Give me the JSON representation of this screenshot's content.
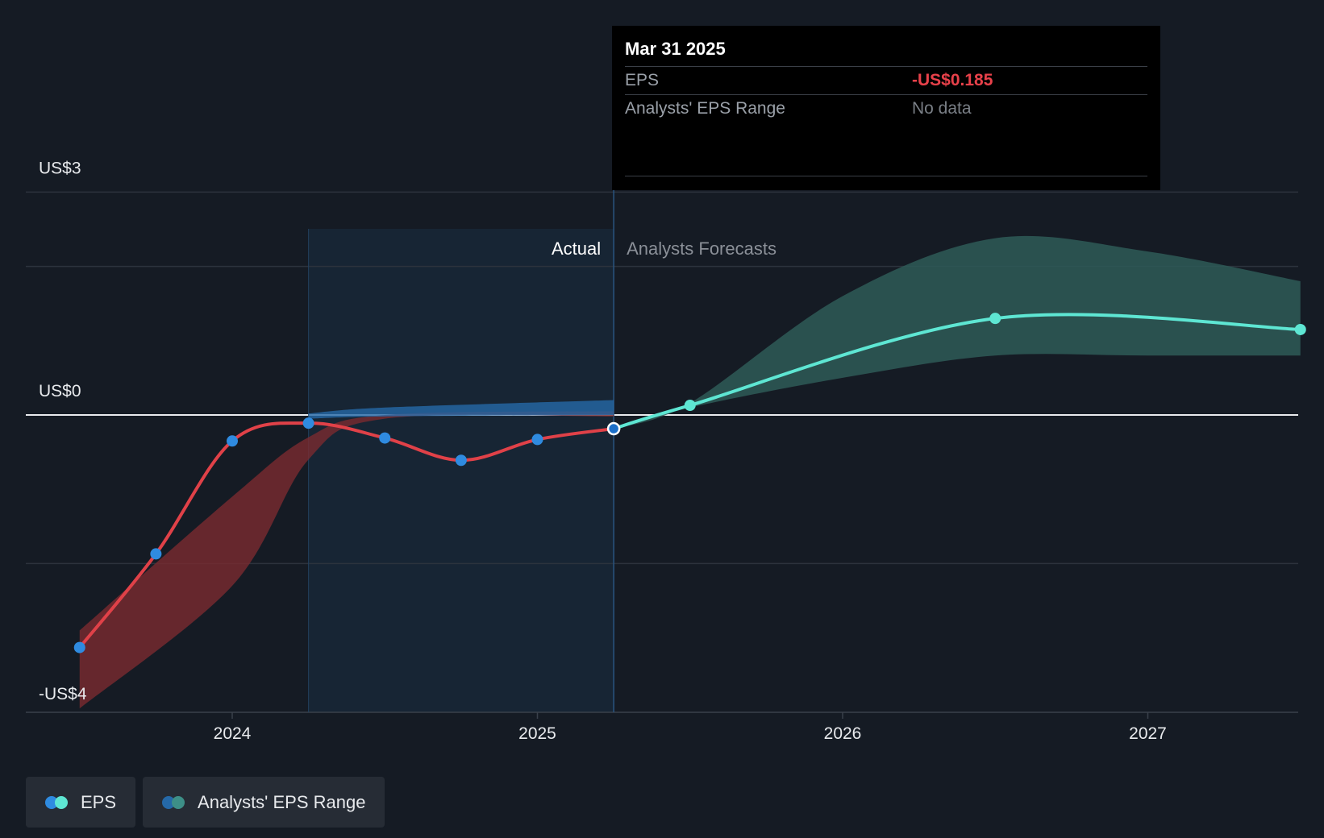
{
  "chart_data": {
    "type": "line",
    "y_axis_labels": [
      "US$3",
      "US$0",
      "-US$4"
    ],
    "ylim": [
      -4,
      3
    ],
    "x_ticks": [
      {
        "label": "2024",
        "x": 2024.0
      },
      {
        "label": "2025",
        "x": 2025.0
      },
      {
        "label": "2026",
        "x": 2026.0
      },
      {
        "label": "2027",
        "x": 2027.0
      }
    ],
    "xlim": [
      2023.33,
      2027.5
    ],
    "grid": true,
    "legend_position": "bottom-left",
    "actual_region_label": "Actual",
    "forecast_region_label": "Analysts Forecasts",
    "actual_region_start": 2024.25,
    "actual_region_end": 2025.25,
    "series": [
      {
        "name": "EPS",
        "kind": "actual",
        "color": "#e04148",
        "marker_color": "#2f8be0",
        "x": [
          2023.5,
          2023.75,
          2024.0,
          2024.25,
          2024.5,
          2024.75,
          2025.0,
          2025.25
        ],
        "y": [
          -3.13,
          -1.87,
          -0.35,
          -0.11,
          -0.31,
          -0.61,
          -0.33,
          -0.185
        ]
      },
      {
        "name": "EPS",
        "kind": "forecast",
        "color": "#5ee6d3",
        "marker_color": "#5ee6d3",
        "x": [
          2025.25,
          2025.5,
          2026.5,
          2027.5
        ],
        "y": [
          -0.185,
          0.13,
          1.3,
          1.15
        ]
      }
    ],
    "past_estimate_range": {
      "color": "#7a2b30",
      "x": [
        2023.5,
        2024.0,
        2024.25,
        2024.5,
        2025.25
      ],
      "upper": [
        -2.9,
        -1.1,
        -0.3,
        0.0,
        0.05
      ],
      "lower": [
        -3.95,
        -2.3,
        -0.6,
        -0.05,
        -0.02
      ]
    },
    "past_range_band": {
      "color": "#2569a8",
      "x": [
        2024.25,
        2024.5,
        2025.25
      ],
      "upper": [
        0.02,
        0.1,
        0.2
      ],
      "lower": [
        -0.05,
        -0.02,
        0.0
      ]
    },
    "forecast_range": {
      "color": "#2e5a57",
      "x": [
        2025.25,
        2025.5,
        2026.0,
        2026.5,
        2027.0,
        2027.5
      ],
      "upper": [
        -0.185,
        0.16,
        1.6,
        2.38,
        2.2,
        1.8
      ],
      "lower": [
        -0.185,
        0.1,
        0.5,
        0.8,
        0.8,
        0.8
      ]
    },
    "highlight": {
      "x": 2025.25,
      "y": -0.185
    }
  },
  "tooltip": {
    "date": "Mar 31 2025",
    "rows": [
      {
        "key": "EPS",
        "value": "-US$0.185"
      },
      {
        "key": "Analysts' EPS Range",
        "value": "No data"
      }
    ]
  },
  "legend": {
    "items": [
      {
        "label": "EPS",
        "colors": [
          "#2f8be0",
          "#5ee6d3"
        ]
      },
      {
        "label": "Analysts' EPS Range",
        "colors": [
          "#2569a8",
          "#3d8f87"
        ]
      }
    ]
  }
}
